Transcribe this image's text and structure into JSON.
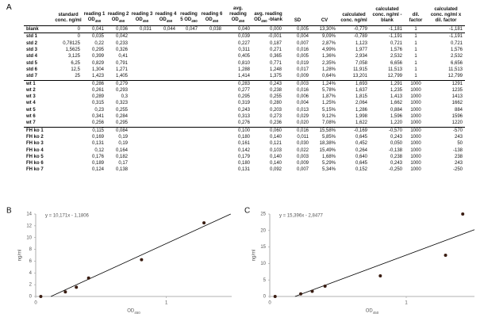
{
  "table": {
    "panel_label": "A",
    "header": [
      null,
      "standard conc. ng/ml",
      "reading 1 OD450",
      "reading 2 OD450",
      "reading 3 OD450",
      "reading 4 OD450",
      "reading 5 OD450",
      "reading 6 OD450",
      "avg. reading OD450",
      "avg. reading OD450 -blank",
      "SD",
      "CV",
      "calculated conc. ng/ml",
      "calculated conc. ng/ml -blank",
      "dil. factor",
      "calculated conc. ng/ml x dil. factor"
    ],
    "rows": [
      [
        "blank",
        "0",
        "0,041",
        "0,036",
        "0,031",
        "0,044",
        "0,047",
        "0,038",
        "0,040",
        "0,000",
        "0,005",
        "13,30%",
        "-0,779",
        "-1,181",
        "1",
        "-1,181"
      ],
      [
        "std 1",
        "0",
        "0,035",
        "0,042",
        null,
        null,
        null,
        null,
        "0,039",
        "-0,001",
        "0,004",
        "9,09%",
        "-0,789",
        "-1,191",
        "1",
        "-1,191"
      ],
      [
        "std 2",
        "0,78125",
        "0,22",
        "0,233",
        null,
        null,
        null,
        null,
        "0,227",
        "0,187",
        "0,007",
        "2,87%",
        "1,123",
        "0,721",
        "1",
        "0,721"
      ],
      [
        "std 3",
        "1,5625",
        "0,295",
        "0,326",
        null,
        null,
        null,
        null,
        "0,311",
        "0,271",
        "0,016",
        "4,99%",
        "1,977",
        "1,576",
        "1",
        "1,576"
      ],
      [
        "std 4",
        "3,125",
        "0,399",
        "0,41",
        null,
        null,
        null,
        null,
        "0,405",
        "0,365",
        "0,005",
        "1,36%",
        "2,934",
        "2,532",
        "1",
        "2,532"
      ],
      [
        "std 5",
        "6,25",
        "0,829",
        "0,791",
        null,
        null,
        null,
        null,
        "0,810",
        "0,771",
        "0,019",
        "2,35%",
        "7,058",
        "6,656",
        "1",
        "6,656"
      ],
      [
        "std 6",
        "12,5",
        "1,304",
        "1,271",
        null,
        null,
        null,
        null,
        "1,288",
        "1,248",
        "0,017",
        "1,28%",
        "11,915",
        "11,513",
        "1",
        "11,513"
      ],
      [
        "std 7",
        "25",
        "1,423",
        "1,405",
        null,
        null,
        null,
        null,
        "1,414",
        "1,375",
        "0,009",
        "0,64%",
        "13,201",
        "12,799",
        "1",
        "12,799"
      ],
      [
        "wt 1",
        null,
        "0,286",
        "0,279",
        null,
        null,
        null,
        null,
        "0,283",
        "0,243",
        "0,003",
        "1,24%",
        "1,693",
        "1,291",
        "1000",
        "1291"
      ],
      [
        "wt 2",
        null,
        "0,261",
        "0,293",
        null,
        null,
        null,
        null,
        "0,277",
        "0,238",
        "0,016",
        "5,78%",
        "1,637",
        "1,235",
        "1000",
        "1235"
      ],
      [
        "wt 3",
        null,
        "0,289",
        "0,3",
        null,
        null,
        null,
        null,
        "0,295",
        "0,255",
        "0,006",
        "1,87%",
        "1,815",
        "1,413",
        "1000",
        "1413"
      ],
      [
        "wt 4",
        null,
        "0,315",
        "0,323",
        null,
        null,
        null,
        null,
        "0,319",
        "0,280",
        "0,004",
        "1,25%",
        "2,064",
        "1,662",
        "1000",
        "1662"
      ],
      [
        "wt 5",
        null,
        "0,23",
        "0,255",
        null,
        null,
        null,
        null,
        "0,243",
        "0,203",
        "0,013",
        "5,15%",
        "1,286",
        "0,884",
        "1000",
        "884"
      ],
      [
        "wt 6",
        null,
        "0,341",
        "0,284",
        null,
        null,
        null,
        null,
        "0,313",
        "0,273",
        "0,029",
        "9,12%",
        "1,998",
        "1,596",
        "1000",
        "1596"
      ],
      [
        "wt 7",
        null,
        "0,256",
        "0,295",
        null,
        null,
        null,
        null,
        "0,276",
        "0,236",
        "0,020",
        "7,08%",
        "1,622",
        "1,220",
        "1000",
        "1220"
      ],
      [
        "FH ko 1",
        null,
        "0,115",
        "0,084",
        null,
        null,
        null,
        null,
        "0,100",
        "0,060",
        "0,016",
        "15,58%",
        "-0,169",
        "-0,570",
        "1000",
        "-570"
      ],
      [
        "FH ko 2",
        null,
        "0,169",
        "0,19",
        null,
        null,
        null,
        null,
        "0,180",
        "0,140",
        "0,011",
        "5,85%",
        "0,645",
        "0,243",
        "1000",
        "243"
      ],
      [
        "FH ko 3",
        null,
        "0,131",
        "0,19",
        null,
        null,
        null,
        null,
        "0,161",
        "0,121",
        "0,030",
        "18,38%",
        "0,452",
        "0,050",
        "1000",
        "50"
      ],
      [
        "FH ko 4",
        null,
        "0,12",
        "0,164",
        null,
        null,
        null,
        null,
        "0,142",
        "0,103",
        "0,022",
        "15,49%",
        "0,264",
        "-0,138",
        "1000",
        "-138"
      ],
      [
        "FH ko 5",
        null,
        "0,176",
        "0,182",
        null,
        null,
        null,
        null,
        "0,179",
        "0,140",
        "0,003",
        "1,68%",
        "0,640",
        "0,238",
        "1000",
        "238"
      ],
      [
        "FH ko 6",
        null,
        "0,189",
        "0,17",
        null,
        null,
        null,
        null,
        "0,180",
        "0,140",
        "0,009",
        "5,29%",
        "0,645",
        "0,243",
        "1000",
        "243"
      ],
      [
        "FH ko 7",
        null,
        "0,124",
        "0,138",
        null,
        null,
        null,
        null,
        "0,131",
        "0,092",
        "0,007",
        "5,34%",
        "0,152",
        "-0,250",
        "1000",
        "-250"
      ]
    ]
  },
  "chart_data": [
    {
      "type": "scatter",
      "panel_label": "B",
      "x_label": "OD450",
      "y_label": "ng/ml",
      "x": [
        0.039,
        0.227,
        0.311,
        0.405,
        0.81,
        1.288
      ],
      "values": [
        0,
        0.78125,
        1.5625,
        3.125,
        6.25,
        12.5
      ],
      "color": "#3a1d12",
      "xlim": [
        0,
        1.5
      ],
      "xticks": [
        0,
        1
      ],
      "ylim": [
        0,
        14
      ],
      "yticks": [
        0,
        2,
        4,
        6,
        8,
        10,
        12,
        14
      ],
      "trendline": {
        "slope": 10.171,
        "intercept": -1.1806,
        "label": "y = 10,171x - 1,1806",
        "color": "#000000"
      }
    },
    {
      "type": "scatter",
      "panel_label": "C",
      "x_label": "OD450",
      "y_label": "ng/ml",
      "x": [
        0.039,
        0.227,
        0.311,
        0.405,
        0.81,
        1.288,
        1.414
      ],
      "values": [
        0,
        0.78125,
        1.5625,
        3.125,
        6.25,
        12.5,
        25
      ],
      "color": "#3a1d12",
      "xlim": [
        0,
        1.5
      ],
      "xticks": [
        0,
        1
      ],
      "ylim": [
        0,
        25
      ],
      "yticks": [
        0,
        5,
        10,
        15,
        20,
        25
      ],
      "trendline": {
        "slope": 15.396,
        "intercept": -2.8477,
        "label": "y = 15,396x - 2,8477",
        "color": "#000000"
      }
    }
  ]
}
